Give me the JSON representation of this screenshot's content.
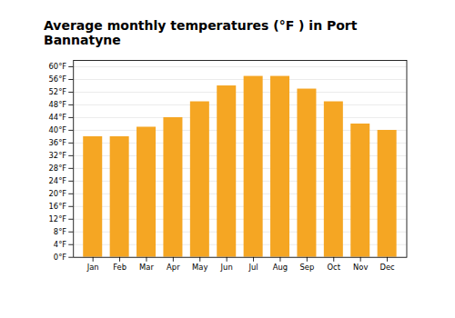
{
  "chart_data": {
    "type": "bar",
    "title": "Average monthly temperatures (°F ) in Port Bannatyne",
    "categories": [
      "Jan",
      "Feb",
      "Mar",
      "Apr",
      "May",
      "Jun",
      "Jul",
      "Aug",
      "Sep",
      "Oct",
      "Nov",
      "Dec"
    ],
    "values": [
      38,
      38,
      41,
      44,
      49,
      54,
      57,
      57,
      53,
      49,
      42,
      40
    ],
    "color": "#F5A623",
    "ylim": [
      0,
      62
    ],
    "yticks": [
      {
        "value": 0,
        "label": "0°F"
      },
      {
        "value": 4,
        "label": "4°F"
      },
      {
        "value": 8,
        "label": "8°F"
      },
      {
        "value": 12,
        "label": "12°F"
      },
      {
        "value": 16,
        "label": "16°F"
      },
      {
        "value": 20,
        "label": "20°F"
      },
      {
        "value": 24,
        "label": "24°F"
      },
      {
        "value": 28,
        "label": "28°F"
      },
      {
        "value": 32,
        "label": "32°F"
      },
      {
        "value": 36,
        "label": "36°F"
      },
      {
        "value": 40,
        "label": "40°F"
      },
      {
        "value": 44,
        "label": "44°F"
      },
      {
        "value": 48,
        "label": "48°F"
      },
      {
        "value": 52,
        "label": "52°F"
      },
      {
        "value": 56,
        "label": "56°F"
      },
      {
        "value": 60,
        "label": "60°F"
      }
    ],
    "grid": true
  }
}
